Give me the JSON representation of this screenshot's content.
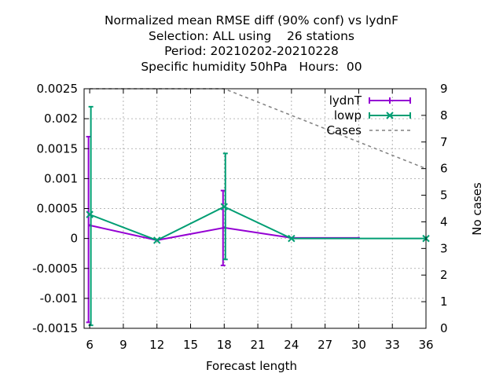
{
  "chart_data": {
    "type": "line",
    "title_lines": [
      "Normalized mean RMSE diff (90% conf) vs lydnF",
      "Selection: ALL using    26 stations",
      "Period: 20210202-20210228",
      "Specific humidity 50hPa   Hours:  00"
    ],
    "xlabel": "Forecast length",
    "ylabel": "",
    "y2label": "No cases",
    "xlim": [
      5.5,
      36
    ],
    "ylim": [
      -0.0015,
      0.0025
    ],
    "y2lim": [
      0,
      9
    ],
    "xticks": [
      6,
      9,
      12,
      15,
      18,
      21,
      24,
      27,
      30,
      33,
      36
    ],
    "yticks": [
      {
        "v": 0.0025,
        "label": "0.0025"
      },
      {
        "v": 0.002,
        "label": "0.002"
      },
      {
        "v": 0.0015,
        "label": "0.0015"
      },
      {
        "v": 0.001,
        "label": "0.001"
      },
      {
        "v": 0.0005,
        "label": "0.0005"
      },
      {
        "v": 0,
        "label": "0"
      },
      {
        "v": -0.0005,
        "label": "-0.0005"
      },
      {
        "v": -0.001,
        "label": "-0.001"
      },
      {
        "v": -0.0015,
        "label": "-0.0015"
      }
    ],
    "y2ticks": [
      0,
      1,
      2,
      3,
      4,
      5,
      6,
      7,
      8,
      9
    ],
    "grid": true,
    "legend_position": "top-right",
    "series": [
      {
        "name": "lydnT",
        "color": "#9400d3",
        "marker": "errorbar",
        "axis": "y1",
        "x": [
          6,
          12,
          18,
          24,
          30
        ],
        "y": [
          0.00022,
          -3e-05,
          0.00018,
          1e-05,
          1e-05
        ],
        "err_low": [
          -0.0014,
          null,
          -0.00045,
          null,
          null
        ],
        "err_high": [
          0.0017,
          null,
          0.0008,
          null,
          null
        ]
      },
      {
        "name": "lowp",
        "color": "#009e73",
        "marker": "x-errorbar",
        "axis": "y1",
        "x": [
          6,
          12,
          18,
          24,
          36
        ],
        "y": [
          0.0004,
          -3e-05,
          0.00053,
          0.0,
          0.0
        ],
        "err_low": [
          -0.00145,
          null,
          -0.00035,
          null,
          null
        ],
        "err_high": [
          0.0022,
          null,
          0.00142,
          null,
          null
        ]
      },
      {
        "name": "Cases",
        "color": "#808080",
        "style": "dashed",
        "axis": "y2",
        "x": [
          6,
          12,
          18,
          24,
          30,
          36
        ],
        "y": [
          9,
          9,
          9,
          8,
          7,
          6
        ]
      }
    ]
  }
}
